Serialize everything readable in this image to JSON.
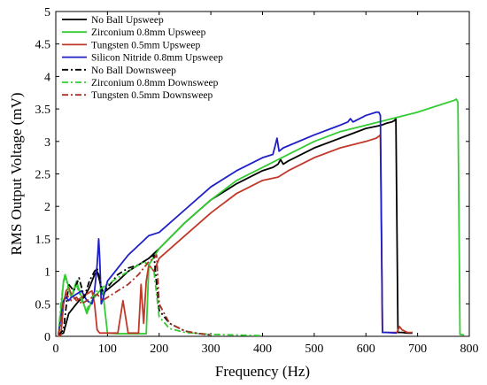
{
  "chart_data": {
    "type": "line",
    "title": "",
    "xlabel": "Frequency (Hz)",
    "ylabel": "RMS Output Voltage (mV)",
    "xlim": [
      0,
      800
    ],
    "ylim": [
      0,
      5
    ],
    "xticks": [
      0,
      100,
      200,
      300,
      400,
      500,
      600,
      700,
      800
    ],
    "yticks": [
      0,
      0.5,
      1,
      1.5,
      2,
      2.5,
      3,
      3.5,
      4,
      4.5,
      5
    ],
    "grid": false,
    "legend_position": "top-left",
    "series": [
      {
        "name": "No Ball Upsweep",
        "color": "#000000",
        "dash": "solid",
        "x": [
          5,
          15,
          25,
          35,
          45,
          55,
          65,
          75,
          80,
          85,
          90,
          100,
          120,
          140,
          160,
          180,
          200,
          250,
          300,
          350,
          400,
          420,
          430,
          435,
          440,
          450,
          500,
          550,
          600,
          630,
          640,
          650,
          655,
          658,
          662,
          670,
          680,
          690
        ],
        "y": [
          0.02,
          0.05,
          0.35,
          0.45,
          0.55,
          0.6,
          0.75,
          0.95,
          1.0,
          0.85,
          0.65,
          0.72,
          0.85,
          1.0,
          1.1,
          1.2,
          1.35,
          1.75,
          2.1,
          2.35,
          2.55,
          2.6,
          2.65,
          2.72,
          2.65,
          2.7,
          2.9,
          3.05,
          3.2,
          3.25,
          3.28,
          3.3,
          3.32,
          3.35,
          0.06,
          0.06,
          0.05,
          0.05
        ]
      },
      {
        "name": "Zirconium 0.8mm Upsweep",
        "color": "#33cc33",
        "dash": "solid",
        "x": [
          5,
          10,
          15,
          18,
          20,
          25,
          30,
          40,
          50,
          60,
          70,
          80,
          90,
          100,
          120,
          140,
          160,
          175,
          180,
          200,
          250,
          300,
          350,
          400,
          450,
          500,
          550,
          600,
          650,
          700,
          750,
          770,
          775,
          778,
          782,
          790
        ],
        "y": [
          0.02,
          0.4,
          0.85,
          0.95,
          0.9,
          0.75,
          0.6,
          0.85,
          0.6,
          0.35,
          0.55,
          0.65,
          0.75,
          0.05,
          0.04,
          0.04,
          0.04,
          0.04,
          1.1,
          1.35,
          1.75,
          2.1,
          2.4,
          2.6,
          2.8,
          3.0,
          3.15,
          3.25,
          3.35,
          3.45,
          3.58,
          3.63,
          3.65,
          3.6,
          0.03,
          0.02
        ]
      },
      {
        "name": "Tungsten 0.5mm Upsweep",
        "color": "#c0392b",
        "dash": "solid",
        "x": [
          5,
          10,
          15,
          20,
          25,
          30,
          40,
          50,
          60,
          70,
          75,
          80,
          85,
          90,
          95,
          100,
          110,
          120,
          125,
          130,
          135,
          140,
          150,
          160,
          165,
          170,
          175,
          180,
          185,
          190,
          200,
          250,
          300,
          350,
          400,
          430,
          440,
          450,
          500,
          550,
          600,
          620,
          625,
          628,
          632,
          640,
          660,
          665,
          670,
          680,
          690
        ],
        "y": [
          0.0,
          0.02,
          0.5,
          0.7,
          0.75,
          0.65,
          0.55,
          0.6,
          0.65,
          0.7,
          0.5,
          0.1,
          0.05,
          0.05,
          0.05,
          0.05,
          0.05,
          0.05,
          0.3,
          0.55,
          0.3,
          0.05,
          0.05,
          0.05,
          0.8,
          0.2,
          0.85,
          1.1,
          1.05,
          1.0,
          1.2,
          1.55,
          1.9,
          2.2,
          2.4,
          2.45,
          2.5,
          2.55,
          2.75,
          2.9,
          3.0,
          3.05,
          3.08,
          3.1,
          0.06,
          0.06,
          0.06,
          0.15,
          0.1,
          0.06,
          0.06
        ]
      },
      {
        "name": "Silicon Nitride 0.8mm Upsweep",
        "color": "#1f1fc8",
        "dash": "solid",
        "x": [
          5,
          10,
          15,
          20,
          25,
          30,
          40,
          50,
          60,
          70,
          75,
          80,
          83,
          85,
          88,
          92,
          100,
          120,
          140,
          160,
          180,
          200,
          250,
          300,
          350,
          400,
          420,
          425,
          428,
          432,
          440,
          500,
          550,
          565,
          570,
          575,
          600,
          620,
          625,
          628,
          632,
          640,
          660
        ],
        "y": [
          0.02,
          0.3,
          0.55,
          0.6,
          0.55,
          0.6,
          0.65,
          0.7,
          0.55,
          0.5,
          0.7,
          1.1,
          1.5,
          1.2,
          0.5,
          0.6,
          0.85,
          1.05,
          1.25,
          1.4,
          1.55,
          1.6,
          1.95,
          2.3,
          2.55,
          2.75,
          2.8,
          2.95,
          3.05,
          2.85,
          2.9,
          3.1,
          3.25,
          3.3,
          3.35,
          3.3,
          3.4,
          3.45,
          3.45,
          3.4,
          0.06,
          0.06,
          0.05
        ]
      },
      {
        "name": "No Ball Downsweep",
        "color": "#000000",
        "dash": "dashdot",
        "x": [
          5,
          15,
          25,
          35,
          45,
          55,
          65,
          75,
          80,
          90,
          100,
          120,
          140,
          160,
          170,
          180,
          190,
          195,
          200,
          220,
          250,
          270,
          290,
          300
        ],
        "y": [
          0.02,
          0.1,
          0.8,
          0.7,
          0.9,
          0.6,
          0.85,
          1.0,
          1.05,
          0.7,
          0.75,
          0.95,
          1.05,
          1.1,
          1.15,
          1.2,
          1.25,
          0.8,
          0.4,
          0.2,
          0.08,
          0.05,
          0.03,
          0.02
        ]
      },
      {
        "name": "Zirconium 0.8mm Downsweep",
        "color": "#33cc33",
        "dash": "dashdot",
        "x": [
          5,
          10,
          15,
          20,
          25,
          30,
          40,
          50,
          60,
          70,
          80,
          90,
          100,
          120,
          140,
          160,
          170,
          180,
          190,
          200,
          220,
          250,
          300,
          350,
          400
        ],
        "y": [
          0.02,
          0.5,
          0.85,
          0.9,
          0.7,
          0.6,
          0.8,
          0.55,
          0.4,
          0.6,
          0.7,
          0.75,
          0.8,
          0.9,
          1.0,
          1.1,
          1.15,
          1.1,
          1.0,
          0.3,
          0.12,
          0.06,
          0.03,
          0.02,
          0.01
        ]
      },
      {
        "name": "Tungsten 0.5mm Downsweep",
        "color": "#a93226",
        "dash": "dashdot",
        "x": [
          5,
          10,
          15,
          20,
          25,
          30,
          40,
          50,
          60,
          70,
          80,
          90,
          100,
          120,
          140,
          160,
          170,
          180,
          190,
          195,
          200,
          220,
          250,
          280,
          300
        ],
        "y": [
          0.02,
          0.2,
          0.55,
          0.65,
          0.6,
          0.55,
          0.6,
          0.5,
          0.55,
          0.6,
          0.65,
          0.55,
          0.6,
          0.7,
          0.8,
          0.95,
          1.05,
          1.15,
          1.2,
          1.25,
          0.5,
          0.2,
          0.08,
          0.04,
          0.02
        ]
      }
    ]
  }
}
